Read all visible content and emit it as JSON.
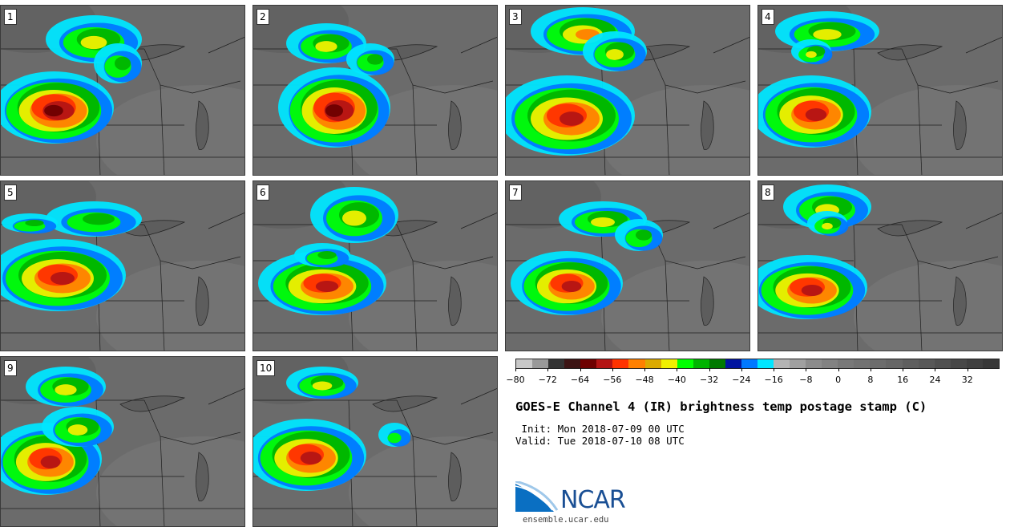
{
  "panels": [
    {
      "label": "1"
    },
    {
      "label": "2"
    },
    {
      "label": "3"
    },
    {
      "label": "4"
    },
    {
      "label": "5"
    },
    {
      "label": "6"
    },
    {
      "label": "7"
    },
    {
      "label": "8"
    },
    {
      "label": "9"
    },
    {
      "label": "10"
    }
  ],
  "colorbar": {
    "colors": [
      "#c8c8c8",
      "#999999",
      "#333333",
      "#3c1414",
      "#6e0000",
      "#b41414",
      "#ff3300",
      "#ff8000",
      "#dcaa00",
      "#f0f000",
      "#00ff00",
      "#00b400",
      "#007a00",
      "#0014a0",
      "#0078ff",
      "#00e6ff",
      "#b4b4b4",
      "#a0a0a0",
      "#8c8c8c",
      "#828282",
      "#787878",
      "#727272",
      "#6c6c6c",
      "#666666",
      "#5e5e5e",
      "#585858",
      "#505050",
      "#484848",
      "#404040",
      "#383838"
    ],
    "ticks": [
      "−80",
      "−72",
      "−64",
      "−56",
      "−48",
      "−40",
      "−32",
      "−24",
      "−16",
      "−8",
      "0",
      "8",
      "16",
      "24",
      "32"
    ]
  },
  "title": "GOES-E Channel 4 (IR) brightness temp postage stamp (C)",
  "init_text": " Init: Mon 2018-07-09 00 UTC",
  "valid_text": "Valid: Tue 2018-07-10 08 UTC",
  "logo": {
    "name": "NCAR",
    "url": "ensemble.ucar.edu",
    "color": "#1a4f94"
  }
}
